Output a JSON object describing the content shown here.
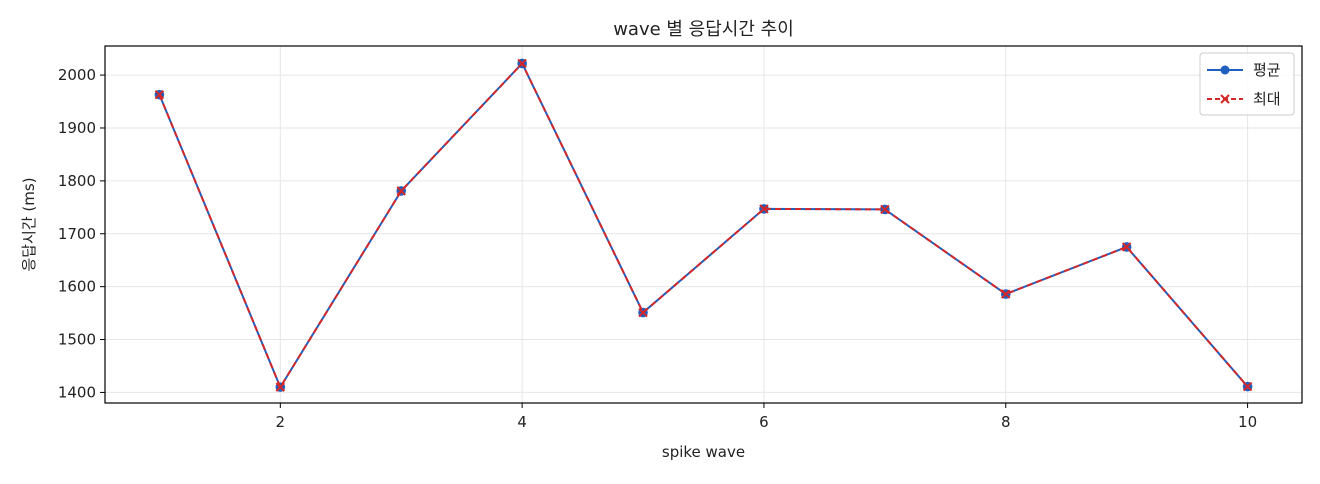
{
  "chart_data": {
    "type": "line",
    "title": "wave 별 응답시간 추이",
    "xlabel": "spike wave",
    "ylabel": "응답시간 (ms)",
    "xlim": [
      0.55,
      10.45
    ],
    "ylim": [
      1380,
      2055
    ],
    "x_ticks": [
      2,
      4,
      6,
      8,
      10
    ],
    "y_ticks": [
      1400,
      1500,
      1600,
      1700,
      1800,
      1900,
      2000
    ],
    "grid": true,
    "legend_position": "top-right",
    "x": [
      1,
      2,
      3,
      4,
      5,
      6,
      7,
      8,
      9,
      10
    ],
    "series": [
      {
        "name": "평균",
        "color": "#1f5fbf",
        "line_style": "solid",
        "marker": "circle",
        "values": [
          1963,
          1410,
          1781,
          2022,
          1551,
          1747,
          1746,
          1586,
          1675,
          1411
        ]
      },
      {
        "name": "최대",
        "color": "#d62728",
        "line_style": "dashed",
        "marker": "x",
        "values": [
          1963,
          1410,
          1781,
          2022,
          1551,
          1747,
          1746,
          1586,
          1675,
          1411
        ]
      }
    ]
  }
}
